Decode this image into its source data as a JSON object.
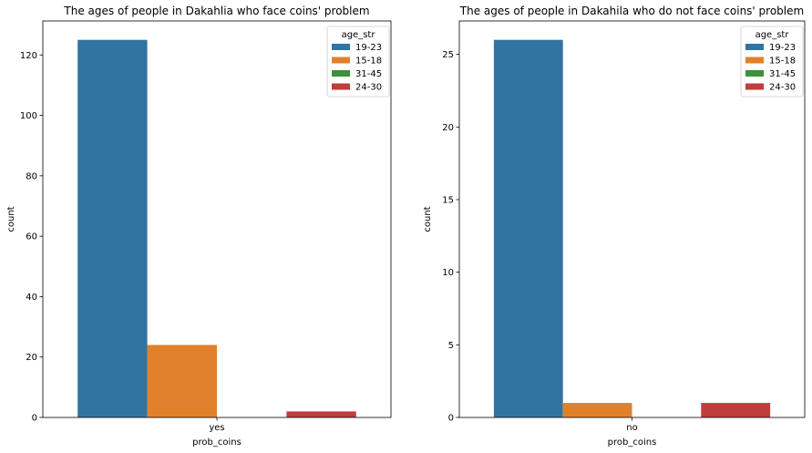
{
  "chart_data": [
    {
      "type": "bar",
      "title": "The ages of people in Dakahlia who face coins' problem",
      "xlabel": "prob_coins",
      "ylabel": "count",
      "categories": [
        "yes"
      ],
      "hue_title": "age_str",
      "series": [
        {
          "name": "19-23",
          "color": "#3274a1",
          "values": [
            125
          ]
        },
        {
          "name": "15-18",
          "color": "#e1812c",
          "values": [
            24
          ]
        },
        {
          "name": "31-45",
          "color": "#3a923a",
          "values": [
            0
          ]
        },
        {
          "name": "24-30",
          "color": "#c03d3e",
          "values": [
            2
          ]
        }
      ],
      "ylim": [
        0,
        131.25
      ],
      "yticks": [
        0,
        20,
        40,
        60,
        80,
        100,
        120
      ],
      "legend_position": "top-right",
      "grid": false
    },
    {
      "type": "bar",
      "title": "The ages of people in Dakahila who do not face coins' problem",
      "xlabel": "prob_coins",
      "ylabel": "count",
      "categories": [
        "no"
      ],
      "hue_title": "age_str",
      "series": [
        {
          "name": "19-23",
          "color": "#3274a1",
          "values": [
            26
          ]
        },
        {
          "name": "15-18",
          "color": "#e1812c",
          "values": [
            1
          ]
        },
        {
          "name": "31-45",
          "color": "#3a923a",
          "values": [
            0
          ]
        },
        {
          "name": "24-30",
          "color": "#c03d3e",
          "values": [
            1
          ]
        }
      ],
      "ylim": [
        0,
        27.3
      ],
      "yticks": [
        0,
        5,
        10,
        15,
        20,
        25
      ],
      "legend_position": "top-right",
      "grid": false
    }
  ]
}
